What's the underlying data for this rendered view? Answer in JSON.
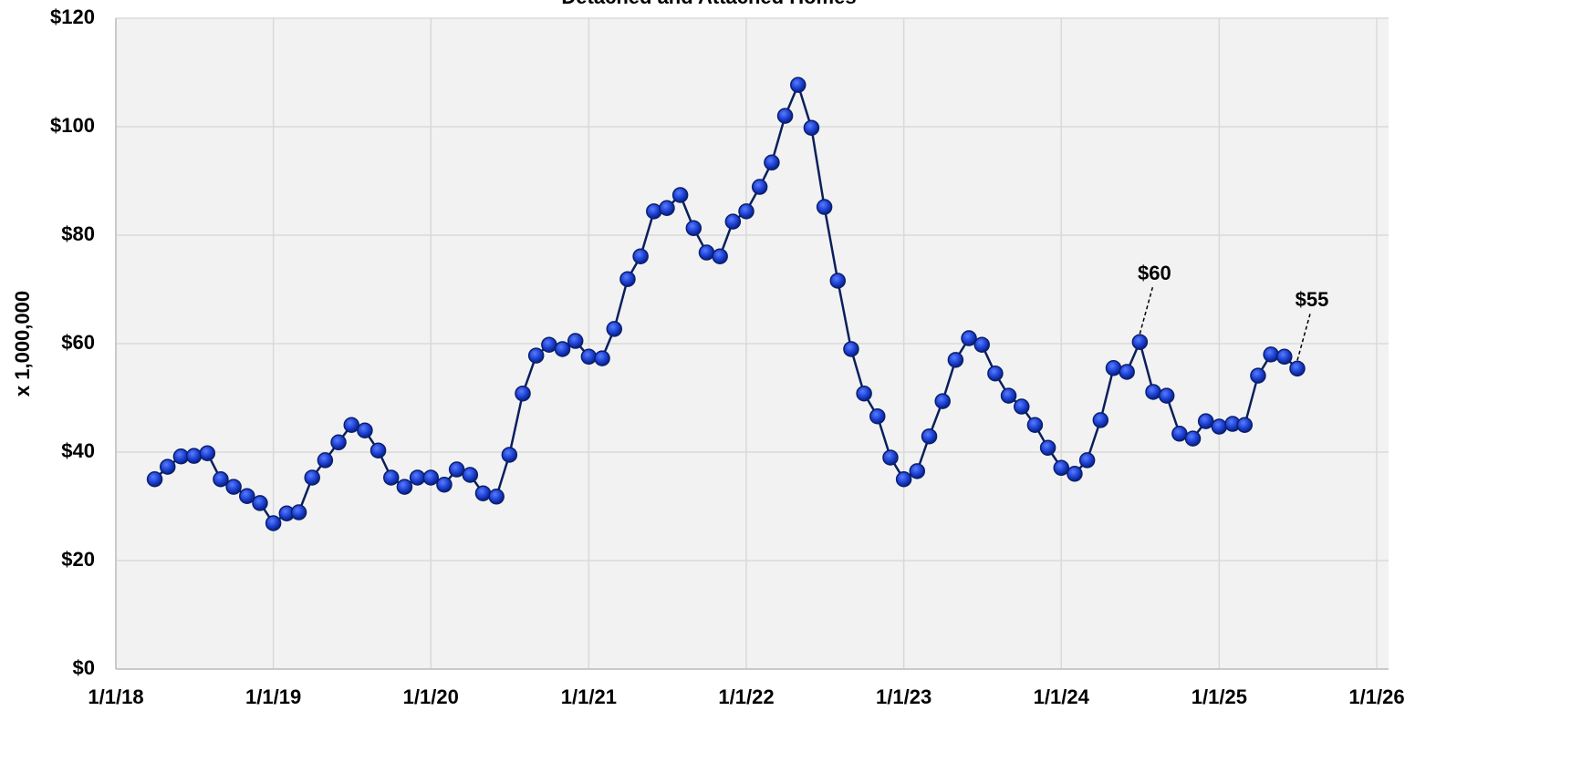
{
  "chart_data": {
    "type": "line",
    "title": "Detached and Attached Homes",
    "ylabel": "x 1,000,000",
    "x": [
      "2018-04-01",
      "2018-05-01",
      "2018-06-01",
      "2018-07-01",
      "2018-08-01",
      "2018-09-01",
      "2018-10-01",
      "2018-11-01",
      "2018-12-01",
      "2019-01-01",
      "2019-02-01",
      "2019-03-01",
      "2019-04-01",
      "2019-05-01",
      "2019-06-01",
      "2019-07-01",
      "2019-08-01",
      "2019-09-01",
      "2019-10-01",
      "2019-11-01",
      "2019-12-01",
      "2020-01-01",
      "2020-02-01",
      "2020-03-01",
      "2020-04-01",
      "2020-05-01",
      "2020-06-01",
      "2020-07-01",
      "2020-08-01",
      "2020-09-01",
      "2020-10-01",
      "2020-11-01",
      "2020-12-01",
      "2021-01-01",
      "2021-02-01",
      "2021-03-01",
      "2021-04-01",
      "2021-05-01",
      "2021-06-01",
      "2021-07-01",
      "2021-08-01",
      "2021-09-01",
      "2021-10-01",
      "2021-11-01",
      "2021-12-01",
      "2022-01-01",
      "2022-02-01",
      "2022-03-01",
      "2022-04-01",
      "2022-05-01",
      "2022-06-01",
      "2022-07-01",
      "2022-08-01",
      "2022-09-01",
      "2022-10-01",
      "2022-11-01",
      "2022-12-01",
      "2023-01-01",
      "2023-02-01",
      "2023-03-01",
      "2023-04-01",
      "2023-05-01",
      "2023-06-01",
      "2023-07-01",
      "2023-08-01",
      "2023-09-01",
      "2023-10-01",
      "2023-11-01",
      "2023-12-01",
      "2024-01-01",
      "2024-02-01",
      "2024-03-01",
      "2024-04-01",
      "2024-05-01",
      "2024-06-01",
      "2024-07-01",
      "2024-08-01",
      "2024-09-01",
      "2024-10-01",
      "2024-11-01",
      "2024-12-01",
      "2025-01-01",
      "2025-02-01",
      "2025-03-01",
      "2025-04-01",
      "2025-05-01",
      "2025-06-01",
      "2025-07-01"
    ],
    "series": [
      {
        "color": "#1a3fd1",
        "line_color": "#0b1f5c",
        "values": [
          35.0,
          37.3,
          39.2,
          39.3,
          39.8,
          35.0,
          33.6,
          31.9,
          30.6,
          26.9,
          28.7,
          28.9,
          35.3,
          38.5,
          41.8,
          45.0,
          44.0,
          40.3,
          35.3,
          33.6,
          35.3,
          35.3,
          34.0,
          36.8,
          35.8,
          32.4,
          31.8,
          39.5,
          50.8,
          57.8,
          59.8,
          59.0,
          60.5,
          57.6,
          57.3,
          62.7,
          71.9,
          76.1,
          84.4,
          85.0,
          87.4,
          81.3,
          76.8,
          76.1,
          82.5,
          84.4,
          88.9,
          93.4,
          102.0,
          107.7,
          99.8,
          85.2,
          71.6,
          59.0,
          50.8,
          46.6,
          39.0,
          35.0,
          36.5,
          42.9,
          49.4,
          57.0,
          61.0,
          59.8,
          54.5,
          50.4,
          48.4,
          45.0,
          40.8,
          37.1,
          36.0,
          38.5,
          45.9,
          55.5,
          54.8,
          60.3,
          51.1,
          50.4,
          43.4,
          42.5,
          45.7,
          44.7,
          45.2,
          45.0,
          54.1,
          58.0,
          57.6,
          55.4
        ],
        "value_labels": [
          null,
          null,
          null,
          null,
          null,
          null,
          null,
          null,
          null,
          null,
          null,
          null,
          null,
          null,
          null,
          null,
          null,
          null,
          null,
          null,
          null,
          null,
          null,
          null,
          null,
          null,
          null,
          null,
          null,
          null,
          null,
          null,
          null,
          null,
          null,
          null,
          null,
          null,
          null,
          null,
          null,
          null,
          null,
          null,
          null,
          null,
          null,
          null,
          null,
          null,
          null,
          null,
          null,
          null,
          null,
          null,
          null,
          null,
          null,
          null,
          null,
          null,
          null,
          null,
          null,
          null,
          null,
          null,
          null,
          null,
          null,
          null,
          null,
          null,
          null,
          "$60",
          null,
          null,
          null,
          null,
          null,
          null,
          null,
          null,
          null,
          null,
          null,
          "$55"
        ]
      }
    ],
    "xlim": [
      "2018-01-01",
      "2026-01-01"
    ],
    "xticks": [
      {
        "value": "2018-01-01",
        "label": "1/1/18"
      },
      {
        "value": "2019-01-01",
        "label": "1/1/19"
      },
      {
        "value": "2020-01-01",
        "label": "1/1/20"
      },
      {
        "value": "2021-01-01",
        "label": "1/1/21"
      },
      {
        "value": "2022-01-01",
        "label": "1/1/22"
      },
      {
        "value": "2023-01-01",
        "label": "1/1/23"
      },
      {
        "value": "2024-01-01",
        "label": "1/1/24"
      },
      {
        "value": "2025-01-01",
        "label": "1/1/25"
      },
      {
        "value": "2026-01-01",
        "label": "1/1/26"
      }
    ],
    "ylim": [
      0,
      120
    ],
    "yticks": [
      {
        "value": 0,
        "label": "$0"
      },
      {
        "value": 20,
        "label": "$20"
      },
      {
        "value": 40,
        "label": "$40"
      },
      {
        "value": 60,
        "label": "$60"
      },
      {
        "value": 80,
        "label": "$80"
      },
      {
        "value": 100,
        "label": "$100"
      },
      {
        "value": 120,
        "label": "$120"
      }
    ],
    "grid": true
  }
}
